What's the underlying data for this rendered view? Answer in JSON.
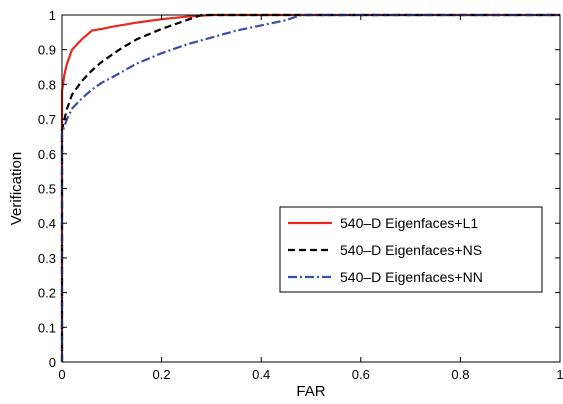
{
  "chart_data": {
    "type": "line",
    "title": "",
    "xlabel": "FAR",
    "ylabel": "Verification",
    "xlim": [
      0,
      1
    ],
    "ylim": [
      0,
      1
    ],
    "xticks": [
      0,
      0.2,
      0.4,
      0.6,
      0.8,
      1
    ],
    "xtick_labels": [
      "0",
      "0.2",
      "0.4",
      "0.6",
      "0.8",
      "1"
    ],
    "yticks": [
      0,
      0.1,
      0.2,
      0.3,
      0.4,
      0.5,
      0.6,
      0.7,
      0.8,
      0.9,
      1
    ],
    "ytick_labels": [
      "0",
      "0.1",
      "0.2",
      "0.3",
      "0.4",
      "0.5",
      "0.6",
      "0.7",
      "0.8",
      "0.9",
      "1"
    ],
    "grid": false,
    "legend_position": "right",
    "series": [
      {
        "name": "540–D Eigenfaces+L1",
        "color": "#e8281e",
        "style": "solid",
        "x": [
          0,
          0.0,
          0.002,
          0.005,
          0.01,
          0.02,
          0.04,
          0.06,
          0.08,
          0.1,
          0.15,
          0.2,
          0.25,
          0.3,
          0.4,
          0.5,
          1
        ],
        "y": [
          0,
          0.78,
          0.8,
          0.83,
          0.86,
          0.9,
          0.93,
          0.955,
          0.96,
          0.966,
          0.978,
          0.988,
          0.995,
          1,
          1,
          1,
          1
        ]
      },
      {
        "name": "540–D Eigenfaces+NS",
        "color": "#000000",
        "style": "dashed",
        "x": [
          0,
          0.0,
          0.005,
          0.01,
          0.02,
          0.04,
          0.06,
          0.08,
          0.1,
          0.12,
          0.15,
          0.2,
          0.25,
          0.28,
          0.35,
          0.5,
          1
        ],
        "y": [
          0,
          0.67,
          0.7,
          0.73,
          0.77,
          0.81,
          0.84,
          0.865,
          0.885,
          0.905,
          0.93,
          0.96,
          0.985,
          1,
          1,
          1,
          1
        ]
      },
      {
        "name": "540–D Eigenfaces+NN",
        "color": "#3a4fa8",
        "style": "dashdot",
        "x": [
          0,
          0.0,
          0.005,
          0.01,
          0.02,
          0.04,
          0.06,
          0.08,
          0.1,
          0.15,
          0.2,
          0.25,
          0.3,
          0.35,
          0.4,
          0.45,
          0.48,
          0.6,
          1
        ],
        "y": [
          0,
          0.66,
          0.68,
          0.7,
          0.73,
          0.76,
          0.785,
          0.805,
          0.82,
          0.86,
          0.89,
          0.915,
          0.935,
          0.955,
          0.97,
          0.985,
          1,
          1,
          1
        ]
      }
    ]
  }
}
